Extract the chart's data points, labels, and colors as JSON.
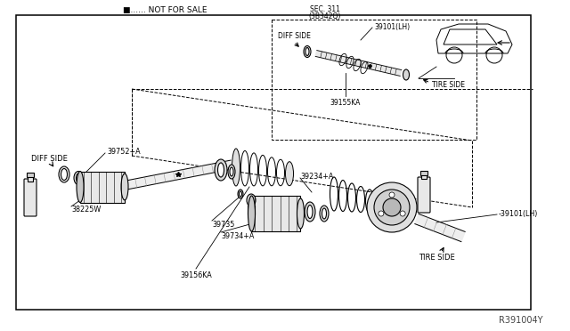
{
  "bg_color": "#ffffff",
  "line_color": "#000000",
  "gray_fill": "#e8e8e8",
  "dark_fill": "#c0c0c0",
  "diagram_ref": "R391004Y",
  "not_for_sale": "■...... NOT FOR SALE",
  "sec_311": "SEC. 311",
  "sec_sub": "(3B342Q)",
  "labels": {
    "diff_side_top": "DIFF SIDE",
    "diff_side_left": "DIFF SIDE",
    "tire_side_top": "TIRE SIDE",
    "tire_side_bottom": "TIRE SIDE",
    "39101_lh_top": "39101(LH)",
    "39101_lh_bottom": "-39101(LH)",
    "39752a": "39752+A",
    "38225w": "38225W",
    "39155ka": "39155KA",
    "39234a": "39234+A",
    "39735": "39735",
    "39734a": "39734+A",
    "39156ka": "39156KA"
  }
}
